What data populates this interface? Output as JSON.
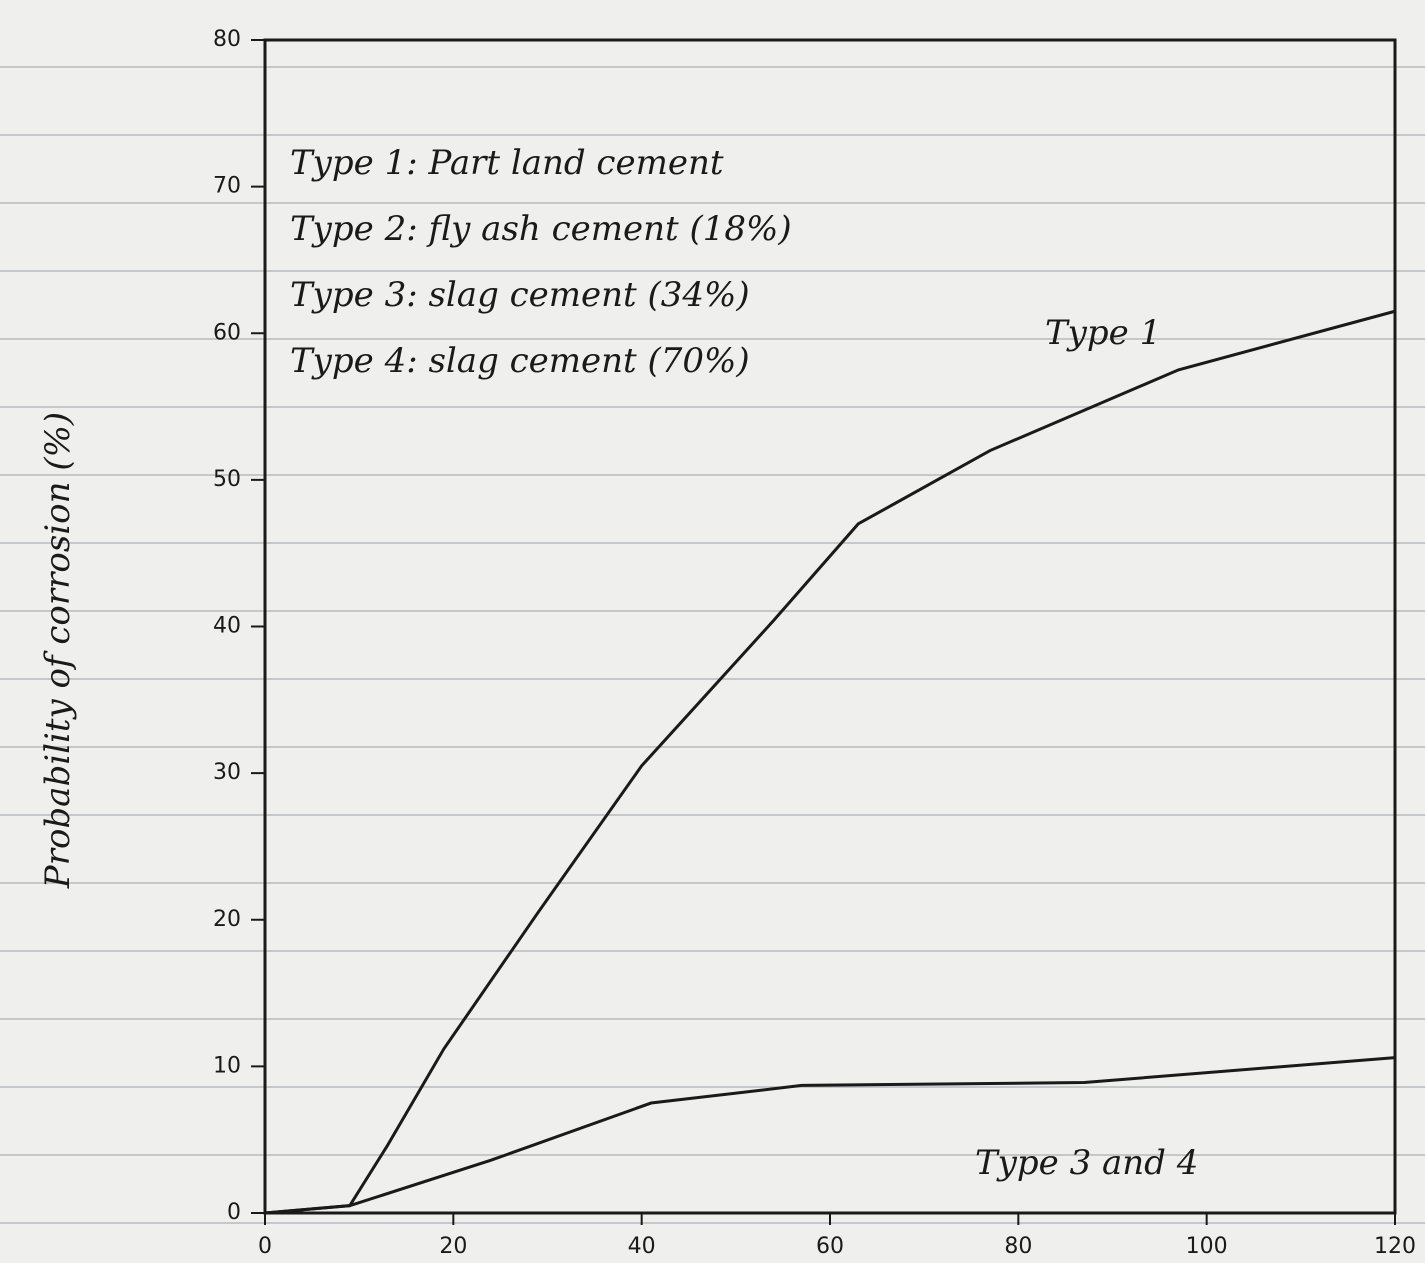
{
  "chart_data": {
    "type": "line",
    "y_label": "Probability of corrosion (%)",
    "annotations": [
      "Type 1: Part land cement",
      "Type 2: fly ash cement (18%)",
      "Type 3: slag cement (34%)",
      "Type 4: slag cement (70%)"
    ],
    "series": [
      {
        "name": "Type 1",
        "color": "#1a1a1a",
        "x": [
          0,
          9,
          13,
          19,
          29,
          40,
          54,
          63,
          77,
          97,
          120
        ],
        "values": [
          0,
          0.5,
          4.6,
          11.2,
          20.5,
          30.5,
          40.4,
          47,
          52,
          57.5,
          61.5
        ]
      },
      {
        "name": "Type 3 and 4",
        "color": "#1a1a1a",
        "x": [
          0,
          9,
          24,
          41,
          57,
          87,
          120
        ],
        "values": [
          0,
          0.5,
          3.6,
          7.5,
          8.7,
          8.9,
          10.6
        ]
      }
    ],
    "xlim": [
      0,
      120
    ],
    "xticks": [
      0,
      20,
      40,
      60,
      80,
      100,
      120
    ],
    "ylim": [
      0,
      80
    ],
    "yticks": [
      0,
      10,
      20,
      30,
      40,
      50,
      60,
      70,
      80
    ]
  }
}
